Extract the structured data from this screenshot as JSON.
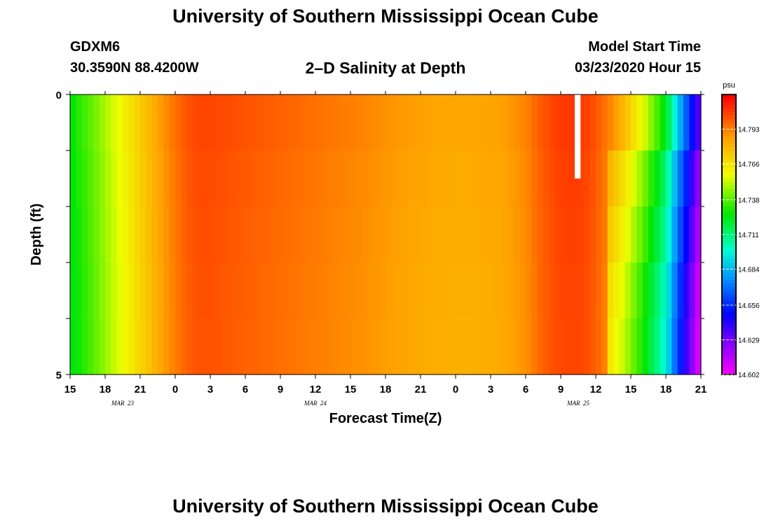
{
  "header": {
    "title": "University of Southern Mississippi Ocean Cube",
    "station_id": "GDXM6",
    "station_coords": "30.3590N 88.4200W",
    "plot_title": "2–D Salinity at Depth",
    "start_label": "Model Start Time",
    "start_value": "03/23/2020 Hour 15"
  },
  "footer": {
    "title": "University of Southern Mississippi Ocean Cube"
  },
  "chart_data": {
    "type": "heatmap",
    "title": "2–D Salinity at Depth",
    "xlabel": "Forecast Time(Z)",
    "ylabel": "Depth (ft)",
    "x_tick_labels": [
      "15",
      "18",
      "21",
      "0",
      "3",
      "6",
      "9",
      "12",
      "15",
      "18",
      "21",
      "0",
      "3",
      "6",
      "9",
      "12",
      "15",
      "18",
      "21"
    ],
    "x_range_hours": [
      0,
      54
    ],
    "date_labels": [
      {
        "label": "MAR 23",
        "hour": 4.5
      },
      {
        "label": "MAR 24",
        "hour": 21
      },
      {
        "label": "MAR 25",
        "hour": 43.5
      }
    ],
    "y_tick_labels": [
      {
        "label": "0",
        "depth": 0
      },
      {
        "label": "",
        "depth": 1
      },
      {
        "label": "",
        "depth": 2
      },
      {
        "label": "",
        "depth": 3
      },
      {
        "label": "",
        "depth": 4
      },
      {
        "label": "5",
        "depth": 5
      }
    ],
    "ylim": [
      0,
      5
    ],
    "depth_layers": 5,
    "colorbar": {
      "unit": "psu",
      "min": 14.602,
      "max": 14.82,
      "tick_labels": [
        "14.793",
        "14.766",
        "14.738",
        "14.711",
        "14.684",
        "14.656",
        "14.629",
        "14.602"
      ]
    },
    "salinity_profile": {
      "hours": [
        0,
        1,
        2,
        3,
        4,
        5,
        6,
        7,
        8,
        9,
        10,
        11,
        12,
        13,
        14,
        16,
        19,
        22,
        25,
        28,
        31,
        34,
        37,
        39,
        40,
        41,
        42,
        43,
        44,
        45,
        46,
        47,
        48,
        49,
        50,
        51,
        52,
        53,
        54
      ],
      "values": [
        14.727,
        14.735,
        14.742,
        14.75,
        14.758,
        14.766,
        14.774,
        14.782,
        14.79,
        14.797,
        14.803,
        14.806,
        14.806,
        14.805,
        14.804,
        14.802,
        14.799,
        14.796,
        14.793,
        14.789,
        14.786,
        14.785,
        14.787,
        14.793,
        14.8,
        14.805,
        14.808,
        14.809,
        14.808,
        14.803,
        14.795,
        14.785,
        14.772,
        14.758,
        14.742,
        14.725,
        14.69,
        14.66,
        14.63
      ]
    },
    "depth_offsets": [
      0.0,
      -0.004,
      -0.006,
      -0.008,
      -0.009
    ],
    "missing_gap": {
      "hour_start": 43.2,
      "hour_end": 43.7,
      "depth_top": 0,
      "depth_bottom": 1.5
    }
  }
}
